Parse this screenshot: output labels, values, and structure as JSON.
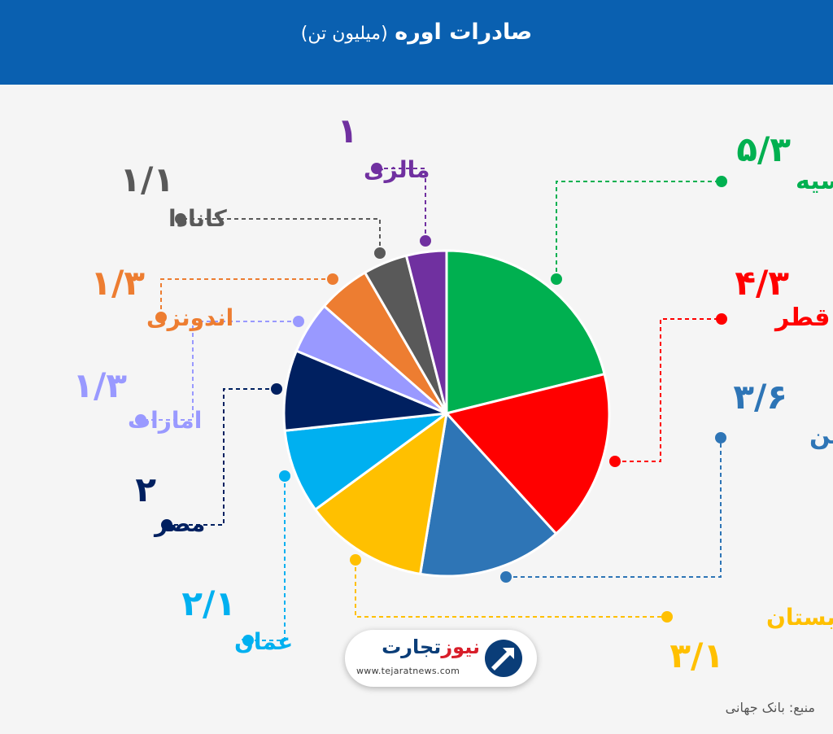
{
  "header": {
    "title_main": "صادرات اوره",
    "title_sub": "(میلیون تن)"
  },
  "chart_data": {
    "type": "pie",
    "title": "صادرات اوره (میلیون تن)",
    "slices": [
      {
        "label": "روسیه",
        "value_text": "۵/۳",
        "value": 5.3,
        "color": "#00b050"
      },
      {
        "label": "قطر",
        "value_text": "۴/۳",
        "value": 4.3,
        "color": "#ff0000"
      },
      {
        "label": "اوکراین",
        "value_text": "۳/۶",
        "value": 3.6,
        "color": "#2e75b6"
      },
      {
        "label": "عربستان",
        "value_text": "۳/۱",
        "value": 3.1,
        "color": "#ffc000"
      },
      {
        "label": "عمان",
        "value_text": "۲/۱",
        "value": 2.1,
        "color": "#00b0f0"
      },
      {
        "label": "مصر",
        "value_text": "۲",
        "value": 2.0,
        "color": "#002060"
      },
      {
        "label": "امارات",
        "value_text": "۱/۳",
        "value": 1.3,
        "color": "#9999ff"
      },
      {
        "label": "اندونزی",
        "value_text": "۱/۳",
        "value": 1.3,
        "color": "#ed7d31"
      },
      {
        "label": "کانادا",
        "value_text": "۱/۱",
        "value": 1.1,
        "color": "#595959"
      },
      {
        "label": "مالزی",
        "value_text": "۱",
        "value": 1.0,
        "color": "#7030a0"
      }
    ]
  },
  "logo": {
    "name_part1": "تجارت",
    "name_part2": "نیوز",
    "url": "www.tejaratnews.com"
  },
  "source": {
    "text": "منبع: بانک جهانی"
  }
}
